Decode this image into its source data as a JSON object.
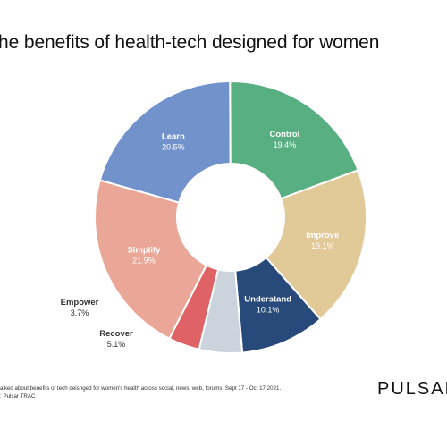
{
  "chart_data": {
    "type": "pie",
    "title": "he benefits of health-tech designed for women",
    "donut": true,
    "slices": [
      {
        "label": "Learn",
        "value": 20.5,
        "display": "20.5%",
        "color": "#7292cc",
        "label_placement": "inside",
        "label_color": "#ffffff"
      },
      {
        "label": "Control",
        "value": 19.4,
        "display": "19.4%",
        "color": "#58b082",
        "label_placement": "inside",
        "label_color": "#ffffff"
      },
      {
        "label": "Improve",
        "value": 19.1,
        "display": "19.1%",
        "color": "#e1c998",
        "label_placement": "inside",
        "label_color": "#ffffff"
      },
      {
        "label": "Understand",
        "value": 10.1,
        "display": "10.1%",
        "color": "#284a7a",
        "label_placement": "inside",
        "label_color": "#ffffff"
      },
      {
        "label": "Recover",
        "value": 5.1,
        "display": "5.1%",
        "color": "#cbd3dc",
        "label_placement": "outside",
        "label_color": "#333333"
      },
      {
        "label": "Empower",
        "value": 3.7,
        "display": "3.7%",
        "color": "#df6366",
        "label_placement": "outside",
        "label_color": "#333333"
      },
      {
        "label": "Simplify",
        "value": 21.9,
        "display": "21.9%",
        "color": "#eaa797",
        "label_placement": "inside",
        "label_color": "#ffffff"
      }
    ]
  },
  "footnote": {
    "line1": "alked about benefits of tech deisnged for women's health across social, news, web, forums, Sept 17 - Oct 17 2021.",
    "line2": ": Pulsar TRAC"
  },
  "brand": "PULSAR"
}
